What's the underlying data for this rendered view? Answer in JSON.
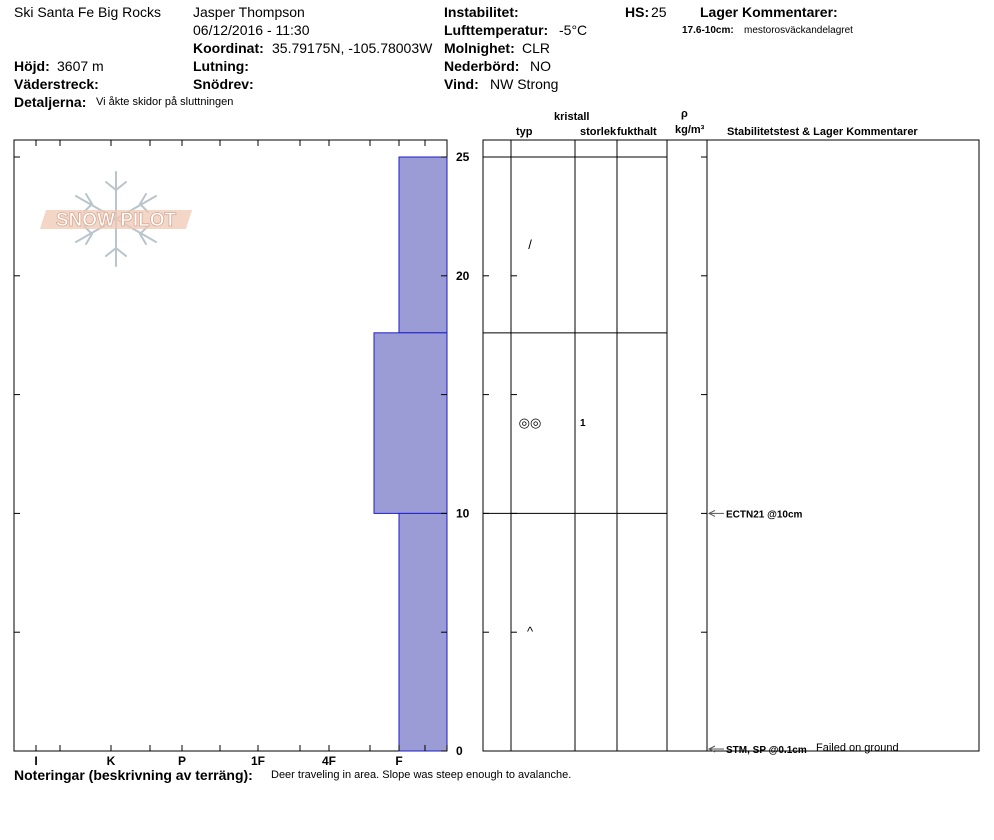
{
  "header": {
    "location": "Ski Santa Fe Big Rocks",
    "observer": "Jasper Thompson",
    "datetime": "06/12/2016 - 11:30",
    "coord_label": "Koordinat:",
    "coord_value": "35.79175N, -105.78003W",
    "elevation_label": "Höjd:",
    "elevation_value": "3607 m",
    "aspect_label": "Väderstreck:",
    "aspect_value": "",
    "slope_label": "Lutning:",
    "slope_value": "",
    "drift_label": "Snödrev:",
    "drift_value": "",
    "details_label": "Detaljerna:",
    "details_value": "Vi åkte skidor på sluttningen",
    "instability_label": "Instabilitet:",
    "instability_value": "",
    "airtemp_label": "Lufttemperatur:",
    "airtemp_value": "-5°C",
    "sky_label": "Molnighet:",
    "sky_value": "CLR",
    "precip_label": "Nederbörd:",
    "precip_value": "NO",
    "wind_label": "Vind:",
    "wind_value": "NW Strong",
    "hs_label": "HS:",
    "hs_value": "25",
    "layer_comments_label": "Lager Kommentarer:",
    "layer_comment_range": "17.6-10cm:",
    "layer_comment_text": "mestorosväckandelagret"
  },
  "columns": {
    "crystal": "kristall",
    "type": "typ",
    "size": "storlek",
    "moisture": "fukthalt",
    "density_symbol": "ρ",
    "density_unit": "kg/m³",
    "stability": "Stabilitetstest & Lager Kommentarer"
  },
  "notes": {
    "label": "Noteringar (beskrivning av terräng):",
    "text": "Deer traveling in area. Slope was steep enough to avalanche."
  },
  "watermark": {
    "text": "SNOW PILOT",
    "icon": "snowflake-icon"
  },
  "chart_data": {
    "type": "bar",
    "orientation": "horizontal",
    "x_axis_categories": [
      "I",
      "K",
      "P",
      "1F",
      "4F",
      "F"
    ],
    "y_ticks": [
      "0",
      "10",
      "20",
      "25"
    ],
    "ylim": [
      0,
      25
    ],
    "layers": [
      {
        "top": 25,
        "bottom": 17.6,
        "hardness": "F",
        "grain_symbol": "/",
        "grain_size": ""
      },
      {
        "top": 17.6,
        "bottom": 10,
        "hardness": "4F-F",
        "grain_symbol": "◎◎",
        "grain_size": "1"
      },
      {
        "top": 10,
        "bottom": 0,
        "hardness": "F",
        "grain_symbol": "^",
        "grain_size": ""
      }
    ],
    "tests": [
      {
        "depth": 10,
        "label": "ECTN21 @10cm",
        "note": ""
      },
      {
        "depth": 0,
        "label": "STM, SP @0.1cm",
        "note": "Failed on ground"
      }
    ],
    "colors": {
      "bar_fill": "#9b9bd6",
      "bar_stroke": "#1e1ec8",
      "watermark": "#f0c8b4"
    }
  }
}
